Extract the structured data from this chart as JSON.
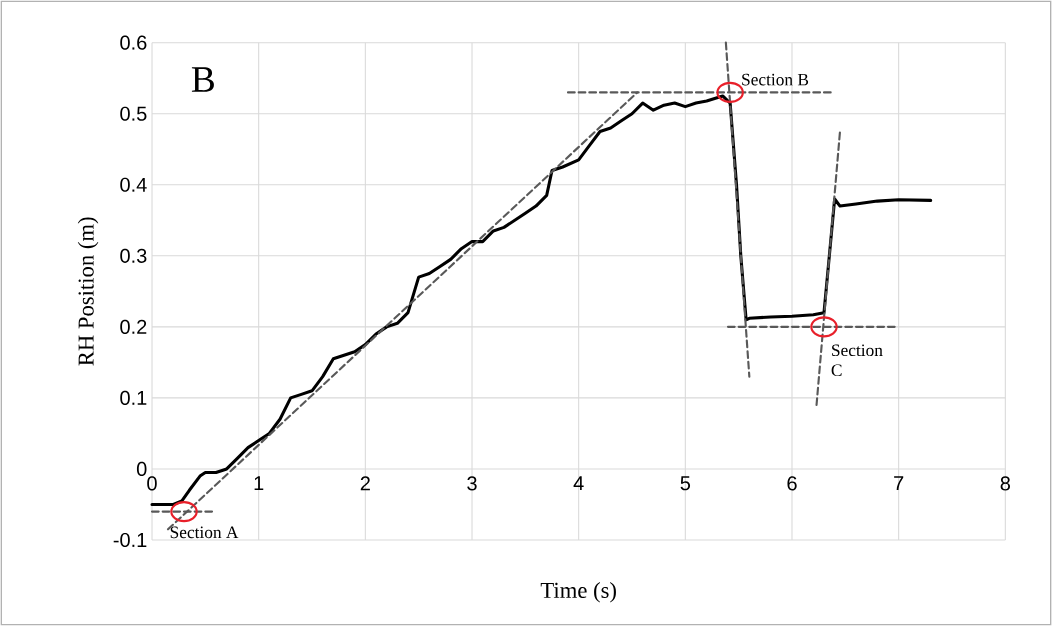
{
  "chart_data": {
    "type": "line",
    "xlabel": "Time (s)",
    "ylabel": "RH Position (m)",
    "xlim": [
      0,
      8
    ],
    "ylim": [
      -0.1,
      0.6
    ],
    "xticks": [
      0,
      1,
      2,
      3,
      4,
      5,
      6,
      7,
      8
    ],
    "yticks": [
      -0.1,
      0,
      0.1,
      0.2,
      0.3,
      0.4,
      0.5,
      0.6
    ],
    "grid": true,
    "marker": "none",
    "line_style": "solid",
    "annotations": [
      "B",
      {
        "text": "Section A",
        "x": 0.3,
        "y": -0.06
      },
      {
        "text": "Section B",
        "x": 5.42,
        "y": 0.53
      },
      {
        "text": "Section C",
        "x": 6.3,
        "y": 0.2
      }
    ],
    "series": [
      {
        "color": "#000000",
        "x": [
          0.0,
          0.1,
          0.2,
          0.28,
          0.35,
          0.45,
          0.5,
          0.6,
          0.7,
          0.8,
          0.9,
          1.0,
          1.1,
          1.2,
          1.3,
          1.4,
          1.5,
          1.6,
          1.7,
          1.8,
          1.9,
          2.0,
          2.1,
          2.2,
          2.3,
          2.4,
          2.5,
          2.6,
          2.7,
          2.8,
          2.9,
          3.0,
          3.1,
          3.2,
          3.3,
          3.4,
          3.5,
          3.6,
          3.7,
          3.75,
          3.85,
          4.0,
          4.1,
          4.2,
          4.3,
          4.4,
          4.5,
          4.6,
          4.7,
          4.8,
          4.9,
          5.0,
          5.1,
          5.2,
          5.35,
          5.42,
          5.48,
          5.52,
          5.57,
          5.6,
          5.8,
          6.0,
          6.2,
          6.3,
          6.35,
          6.4,
          6.45,
          6.6,
          6.8,
          7.0,
          7.3
        ],
        "values": [
          -0.05,
          -0.05,
          -0.05,
          -0.045,
          -0.03,
          -0.01,
          -0.005,
          -0.005,
          0.0,
          0.015,
          0.03,
          0.04,
          0.05,
          0.07,
          0.1,
          0.105,
          0.11,
          0.13,
          0.155,
          0.16,
          0.165,
          0.175,
          0.19,
          0.2,
          0.205,
          0.22,
          0.27,
          0.275,
          0.285,
          0.295,
          0.31,
          0.32,
          0.32,
          0.335,
          0.34,
          0.35,
          0.36,
          0.37,
          0.385,
          0.42,
          0.425,
          0.435,
          0.455,
          0.475,
          0.48,
          0.49,
          0.5,
          0.515,
          0.505,
          0.512,
          0.515,
          0.51,
          0.515,
          0.518,
          0.525,
          0.515,
          0.4,
          0.3,
          0.21,
          0.212,
          0.214,
          0.215,
          0.217,
          0.22,
          0.3,
          0.38,
          0.37,
          0.373,
          0.377,
          0.379,
          0.378
        ]
      },
      {
        "type": "line",
        "color": "#595959",
        "line_style": "dashed",
        "x": [
          0.0,
          0.6
        ],
        "values": [
          -0.06,
          -0.06
        ]
      },
      {
        "type": "line",
        "color": "#595959",
        "line_style": "dashed",
        "x": [
          0.15,
          4.55
        ],
        "values": [
          -0.085,
          0.53
        ]
      },
      {
        "type": "line",
        "color": "#595959",
        "line_style": "dashed",
        "x": [
          3.9,
          6.4
        ],
        "values": [
          0.53,
          0.53
        ]
      },
      {
        "type": "line",
        "color": "#595959",
        "line_style": "dashed",
        "x": [
          5.38,
          5.6
        ],
        "values": [
          0.6,
          0.13
        ]
      },
      {
        "type": "line",
        "color": "#595959",
        "line_style": "dashed",
        "x": [
          5.4,
          7.0
        ],
        "values": [
          0.2,
          0.2
        ]
      },
      {
        "type": "line",
        "color": "#595959",
        "line_style": "dashed",
        "x": [
          6.23,
          6.45
        ],
        "values": [
          0.09,
          0.475
        ]
      },
      {
        "type": "scatter",
        "color": "#e8202a",
        "marker": "circle",
        "x": [
          0.3,
          5.42,
          6.3
        ],
        "values": [
          -0.06,
          0.53,
          0.2
        ]
      }
    ]
  }
}
